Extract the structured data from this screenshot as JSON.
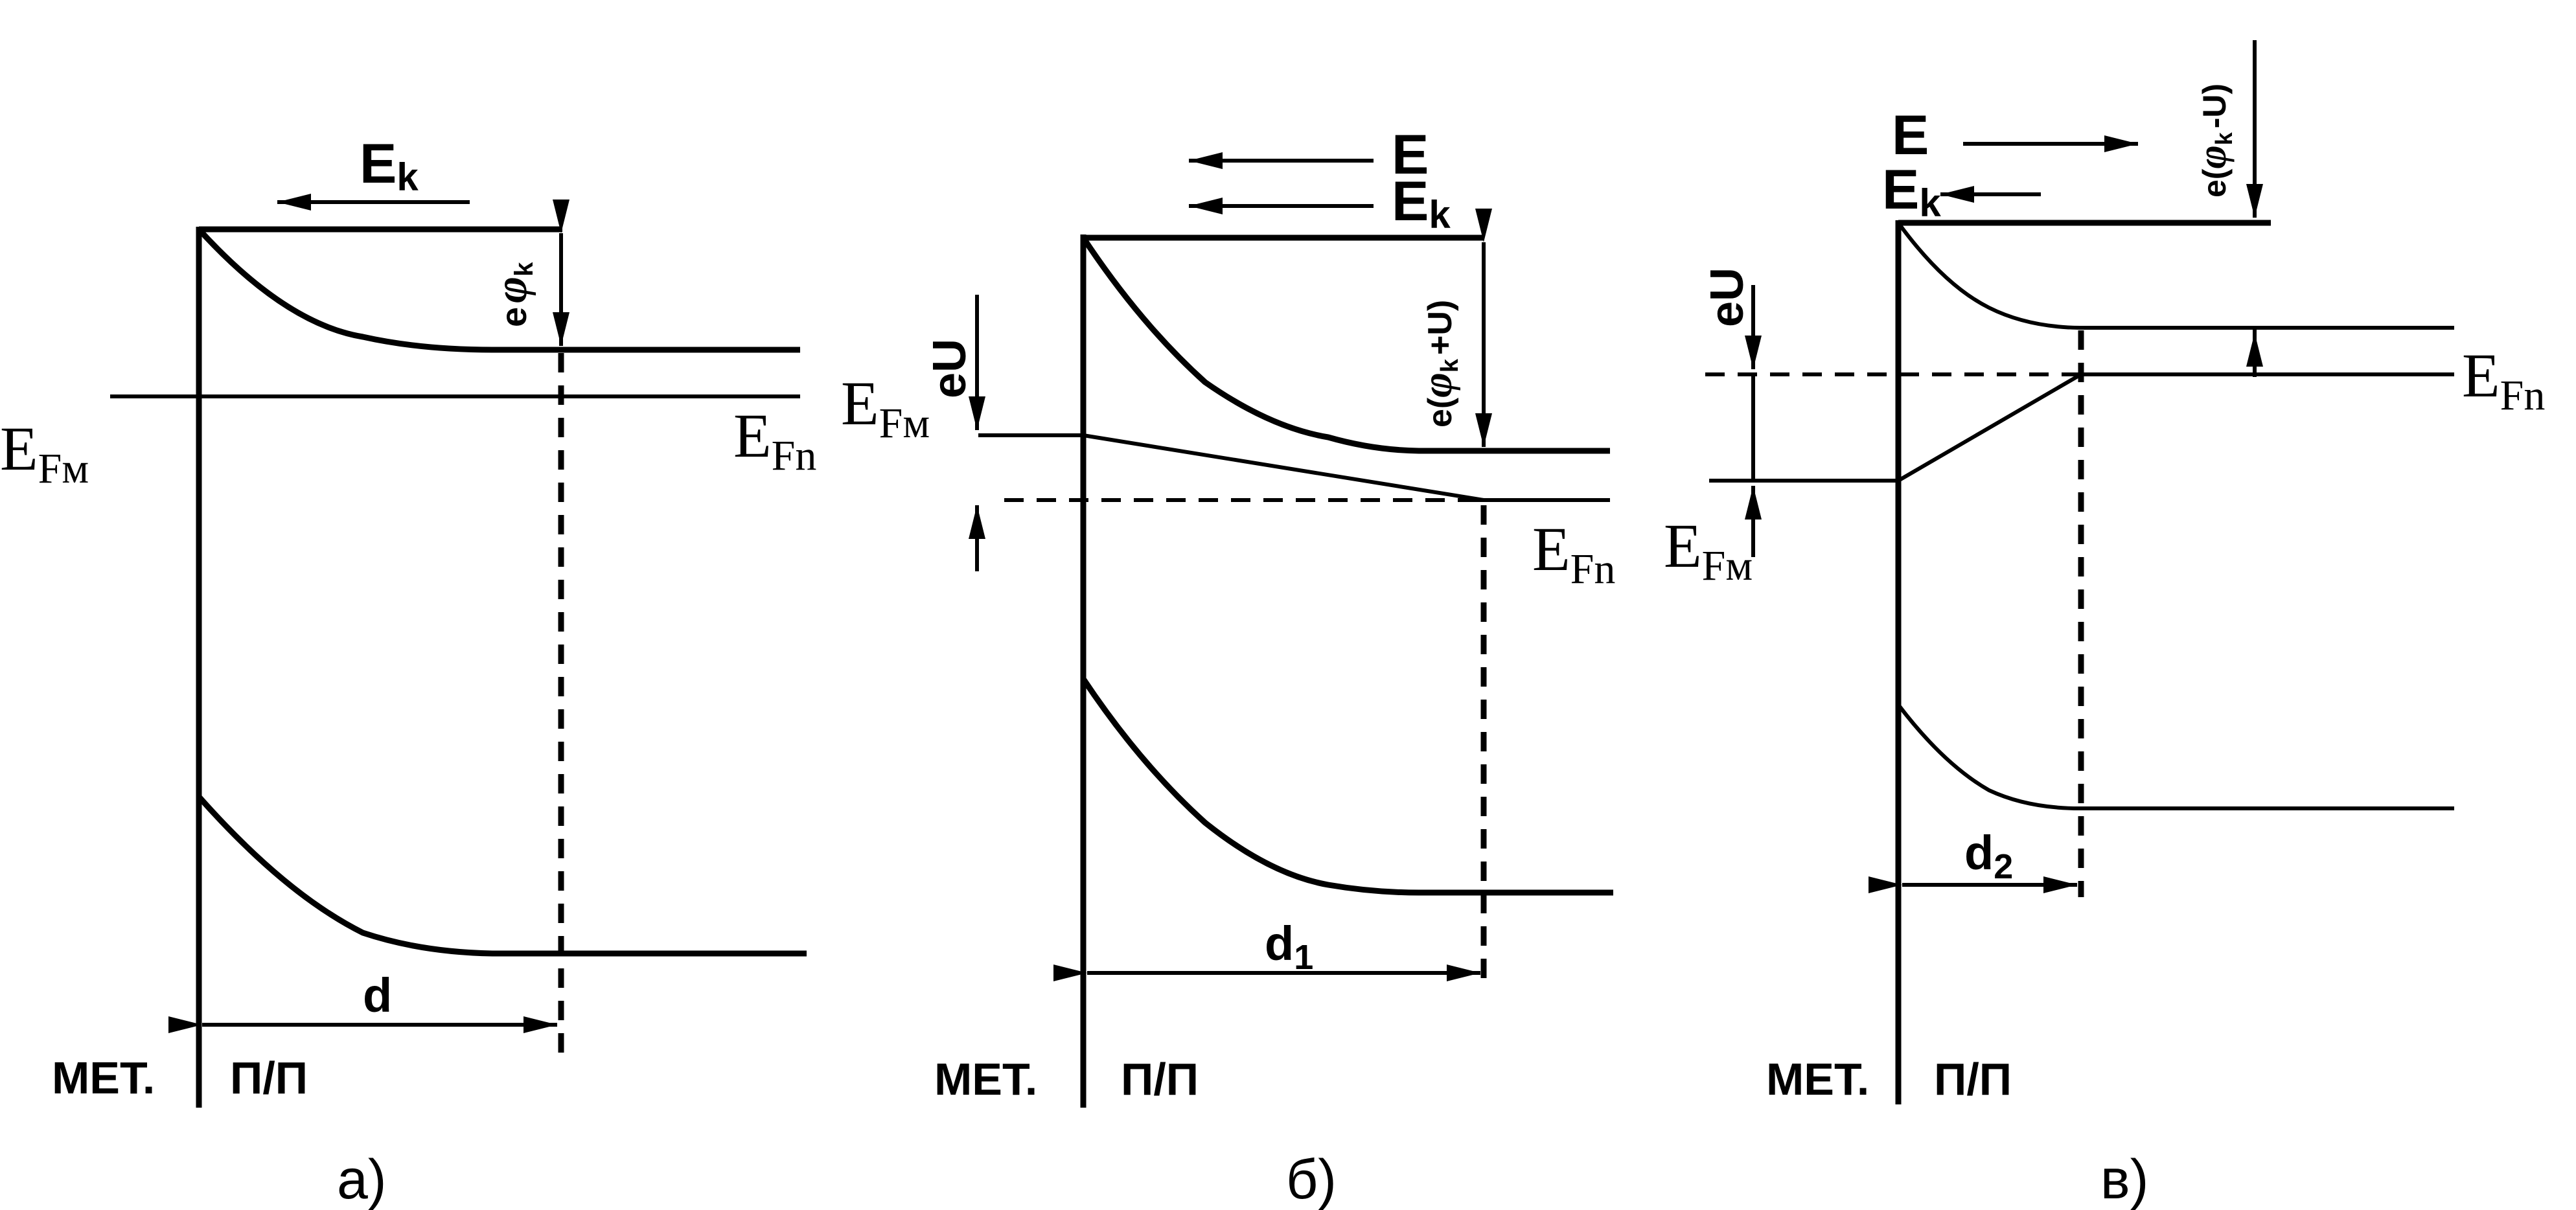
{
  "panel_a": {
    "caption": "а)",
    "field_label": "E",
    "field_sub": "k",
    "barrier_label": "e",
    "barrier_phi": "φ",
    "barrier_sub": "k",
    "fermi_metal": "E",
    "fermi_metal_sub": "Fм",
    "fermi_semi": "E",
    "fermi_semi_sub": "Fn",
    "width_label": "d",
    "metal_label": "МЕТ.",
    "semi_label": "П/П"
  },
  "panel_b": {
    "caption": "б)",
    "field_E_label": "E",
    "field_Ek_label": "E",
    "field_Ek_sub": "k",
    "bias_label": "eU",
    "barrier_label": "e(",
    "barrier_phi": "φ",
    "barrier_sub": "k",
    "barrier_tail": "+U)",
    "fermi_metal": "E",
    "fermi_metal_sub": "Fм",
    "fermi_semi": "E",
    "fermi_semi_sub": "Fn",
    "width_label": "d",
    "width_sub": "1",
    "metal_label": "МЕТ.",
    "semi_label": "П/П"
  },
  "panel_c": {
    "caption": "в)",
    "field_E_label": "E",
    "field_Ek_label": "E",
    "field_Ek_sub": "k",
    "bias_label": "eU",
    "barrier_label": "e(",
    "barrier_phi": "φ",
    "barrier_sub": "k",
    "barrier_tail": "-U)",
    "fermi_metal": "E",
    "fermi_metal_sub": "Fм",
    "fermi_semi": "E",
    "fermi_semi_sub": "Fn",
    "width_label": "d",
    "width_sub": "2",
    "metal_label": "МЕТ.",
    "semi_label": "П/П"
  }
}
